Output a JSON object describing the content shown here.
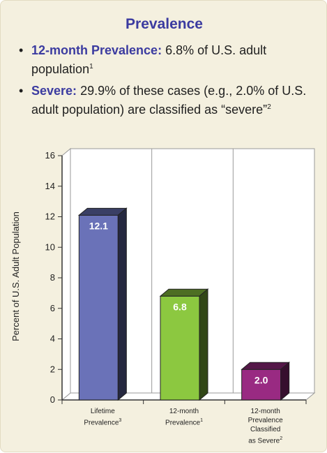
{
  "header": {
    "title": "Prevalence"
  },
  "bullets": [
    {
      "lead": "12-month Prevalence:",
      "text": " 6.8% of U.S. adult population",
      "sup": "1"
    },
    {
      "lead": "Severe:",
      "text": " 29.9% of these cases (e.g., 2.0% of U.S. adult population) are classified as “severe”",
      "sup": "2"
    }
  ],
  "chart_data": {
    "type": "bar",
    "categories": [
      {
        "lines": [
          "Lifetime",
          "Prevalence"
        ],
        "sup": "3"
      },
      {
        "lines": [
          "12-month",
          "Prevalence"
        ],
        "sup": "1"
      },
      {
        "lines": [
          "12-month",
          "Prevalence",
          "Classified",
          "as Severe"
        ],
        "sup": "2"
      }
    ],
    "values": [
      12.1,
      6.8,
      2.0
    ],
    "value_labels": [
      "12.1",
      "6.8",
      "2.0"
    ],
    "bar_colors": [
      "#6a72b8",
      "#8cc840",
      "#992a82"
    ],
    "ylabel": "Percent of U.S. Adult Population",
    "ylim": [
      0,
      16
    ],
    "yticks": [
      0,
      2,
      4,
      6,
      8,
      10,
      12,
      14,
      16
    ],
    "grid": false
  }
}
